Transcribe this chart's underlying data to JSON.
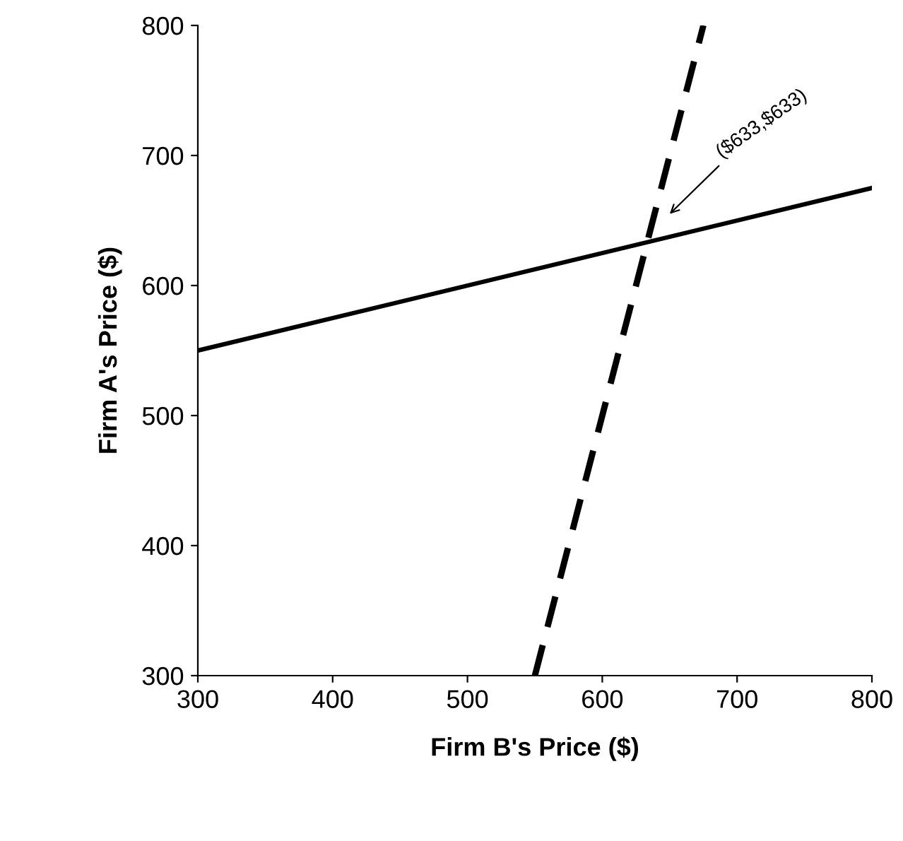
{
  "chart_data": {
    "type": "line",
    "xlabel": "Firm B's Price ($)",
    "ylabel": "Firm A's Price ($)",
    "series": [
      {
        "color": "#000000",
        "line_style": "solid",
        "x": [
          300,
          800
        ],
        "values": [
          550,
          675
        ]
      },
      {
        "color": "#000000",
        "line_style": "dashed",
        "x": [
          550,
          675
        ],
        "values": [
          300,
          800
        ]
      }
    ],
    "annotations": [
      "($633,$633)"
    ],
    "xlim": [
      300,
      800
    ],
    "ylim": [
      300,
      800
    ],
    "xticks": [
      300,
      400,
      500,
      600,
      700,
      800
    ],
    "yticks": [
      300,
      400,
      500,
      600,
      700,
      800
    ],
    "grid": false,
    "marker": "none"
  }
}
